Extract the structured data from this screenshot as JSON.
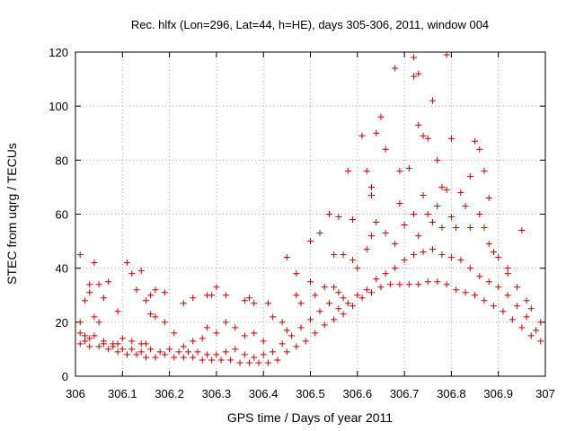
{
  "chart_data": {
    "type": "scatter",
    "title": "Rec. hlfx (Lon=296, Lat=44, h=HE), days 305-306, 2011, window 004",
    "xlabel": "GPS time / Days of year 2011",
    "ylabel": "STEC from uqrg / TECUs",
    "xlim": [
      306,
      307
    ],
    "ylim": [
      0,
      120
    ],
    "x_ticks": [
      306,
      306.1,
      306.2,
      306.3,
      306.4,
      306.5,
      306.6,
      306.7,
      306.8,
      306.9,
      307
    ],
    "x_tick_labels": [
      "306",
      "306.1",
      "306.2",
      "306.3",
      "306.4",
      "306.5",
      "306.6",
      "306.7",
      "306.8",
      "306.9",
      "307"
    ],
    "y_ticks": [
      0,
      20,
      40,
      60,
      80,
      100,
      120
    ],
    "y_tick_labels": [
      "0",
      "20",
      "40",
      "60",
      "80",
      "100",
      "120"
    ],
    "grid": true,
    "marker": "plus",
    "color": "#cc0000",
    "series": [
      {
        "points": [
          [
            306.01,
            45
          ],
          [
            306.02,
            28
          ],
          [
            306.03,
            34
          ],
          [
            306.03,
            31
          ],
          [
            306.04,
            42
          ],
          [
            306.05,
            34
          ],
          [
            306.06,
            29
          ],
          [
            306.07,
            35
          ],
          [
            306.09,
            24
          ],
          [
            306.11,
            42
          ],
          [
            306.12,
            38
          ],
          [
            306.13,
            32
          ],
          [
            306.14,
            39
          ],
          [
            306.15,
            28
          ],
          [
            306.16,
            30
          ],
          [
            306.17,
            32
          ],
          [
            306.19,
            31
          ],
          [
            306.23,
            27
          ],
          [
            306.25,
            29
          ],
          [
            306.28,
            30
          ],
          [
            306.29,
            30
          ],
          [
            306.3,
            33
          ],
          [
            306.32,
            30
          ],
          [
            306.36,
            28
          ],
          [
            306.37,
            29
          ],
          [
            306.38,
            27
          ],
          [
            306.41,
            27
          ],
          [
            306.45,
            44
          ],
          [
            306.47,
            38
          ],
          [
            306.5,
            50
          ],
          [
            306.52,
            53
          ],
          [
            306.54,
            60
          ],
          [
            306.55,
            45
          ],
          [
            306.56,
            59
          ],
          [
            306.57,
            45
          ],
          [
            306.58,
            76
          ],
          [
            306.59,
            58
          ],
          [
            306.61,
            89
          ],
          [
            306.62,
            76
          ],
          [
            306.63,
            67
          ],
          [
            306.63,
            70
          ],
          [
            306.64,
            90
          ],
          [
            306.65,
            96
          ],
          [
            306.66,
            84
          ],
          [
            306.68,
            114
          ],
          [
            306.69,
            76
          ],
          [
            306.71,
            77
          ],
          [
            306.72,
            118
          ],
          [
            306.72,
            111
          ],
          [
            306.73,
            112
          ],
          [
            306.73,
            93
          ],
          [
            306.74,
            89
          ],
          [
            306.75,
            88
          ],
          [
            306.76,
            102
          ],
          [
            306.77,
            80
          ],
          [
            306.78,
            70
          ],
          [
            306.79,
            119
          ],
          [
            306.8,
            88
          ],
          [
            306.82,
            68
          ],
          [
            306.84,
            74
          ],
          [
            306.85,
            87
          ],
          [
            306.86,
            84
          ],
          [
            306.87,
            76
          ],
          [
            306.88,
            66
          ],
          [
            306.92,
            40
          ],
          [
            306.95,
            54
          ],
          [
            306.01,
            20
          ],
          [
            306.02,
            15
          ],
          [
            306.03,
            14
          ],
          [
            306.04,
            22
          ],
          [
            306.05,
            20
          ],
          [
            306.06,
            13
          ],
          [
            306.08,
            12
          ],
          [
            306.09,
            12
          ],
          [
            306.1,
            14
          ],
          [
            306.12,
            13
          ],
          [
            306.14,
            12
          ],
          [
            306.15,
            12
          ],
          [
            306.16,
            23
          ],
          [
            306.17,
            22
          ],
          [
            306.19,
            20
          ],
          [
            306.21,
            16
          ],
          [
            306.23,
            11
          ],
          [
            306.25,
            13
          ],
          [
            306.27,
            14
          ],
          [
            306.28,
            18
          ],
          [
            306.3,
            16
          ],
          [
            306.32,
            20
          ],
          [
            306.34,
            18
          ],
          [
            306.36,
            15
          ],
          [
            306.38,
            16
          ],
          [
            306.4,
            13
          ],
          [
            306.42,
            22
          ],
          [
            306.44,
            20
          ],
          [
            306.45,
            17
          ],
          [
            306.47,
            30
          ],
          [
            306.48,
            27
          ],
          [
            306.5,
            35
          ],
          [
            306.51,
            30
          ],
          [
            306.53,
            33
          ],
          [
            306.55,
            33
          ],
          [
            306.56,
            31
          ],
          [
            306.57,
            29
          ],
          [
            306.59,
            43
          ],
          [
            306.6,
            40
          ],
          [
            306.62,
            47
          ],
          [
            306.63,
            52
          ],
          [
            306.64,
            57
          ],
          [
            306.66,
            53
          ],
          [
            306.68,
            49
          ],
          [
            306.69,
            64
          ],
          [
            306.7,
            56
          ],
          [
            306.72,
            60
          ],
          [
            306.73,
            52
          ],
          [
            306.74,
            67
          ],
          [
            306.75,
            60
          ],
          [
            306.76,
            57
          ],
          [
            306.77,
            63
          ],
          [
            306.78,
            55
          ],
          [
            306.79,
            69
          ],
          [
            306.8,
            59
          ],
          [
            306.81,
            55
          ],
          [
            306.83,
            63
          ],
          [
            306.84,
            55
          ],
          [
            306.86,
            60
          ],
          [
            306.87,
            55
          ],
          [
            306.88,
            49
          ],
          [
            306.89,
            46
          ],
          [
            306.9,
            44
          ],
          [
            306.92,
            38
          ],
          [
            306.94,
            33
          ],
          [
            306.96,
            28
          ],
          [
            306.97,
            25
          ],
          [
            306.99,
            20
          ],
          [
            306.01,
            16
          ],
          [
            306.02,
            13
          ],
          [
            306.04,
            15
          ],
          [
            306.06,
            12
          ],
          [
            306.08,
            11
          ],
          [
            306.1,
            10
          ],
          [
            306.12,
            10
          ],
          [
            306.14,
            9
          ],
          [
            306.16,
            10
          ],
          [
            306.18,
            9
          ],
          [
            306.2,
            10
          ],
          [
            306.22,
            9
          ],
          [
            306.24,
            9
          ],
          [
            306.26,
            9
          ],
          [
            306.28,
            8
          ],
          [
            306.3,
            8
          ],
          [
            306.32,
            9
          ],
          [
            306.34,
            10
          ],
          [
            306.36,
            8
          ],
          [
            306.38,
            7
          ],
          [
            306.4,
            8
          ],
          [
            306.42,
            9
          ],
          [
            306.44,
            12
          ],
          [
            306.46,
            15
          ],
          [
            306.48,
            18
          ],
          [
            306.5,
            21
          ],
          [
            306.52,
            24
          ],
          [
            306.54,
            27
          ],
          [
            306.56,
            25
          ],
          [
            306.58,
            27
          ],
          [
            306.6,
            30
          ],
          [
            306.62,
            32
          ],
          [
            306.64,
            36
          ],
          [
            306.66,
            38
          ],
          [
            306.68,
            40
          ],
          [
            306.7,
            43
          ],
          [
            306.72,
            45
          ],
          [
            306.74,
            46
          ],
          [
            306.76,
            47
          ],
          [
            306.78,
            45
          ],
          [
            306.8,
            44
          ],
          [
            306.82,
            43
          ],
          [
            306.84,
            40
          ],
          [
            306.86,
            37
          ],
          [
            306.88,
            35
          ],
          [
            306.9,
            33
          ],
          [
            306.92,
            30
          ],
          [
            306.94,
            26
          ],
          [
            306.96,
            22
          ],
          [
            306.98,
            17
          ],
          [
            306.01,
            12
          ],
          [
            306.03,
            11
          ],
          [
            306.05,
            11
          ],
          [
            306.07,
            10
          ],
          [
            306.09,
            9
          ],
          [
            306.11,
            8
          ],
          [
            306.13,
            8
          ],
          [
            306.15,
            7
          ],
          [
            306.17,
            7
          ],
          [
            306.19,
            8
          ],
          [
            306.21,
            7
          ],
          [
            306.23,
            7
          ],
          [
            306.25,
            7
          ],
          [
            306.27,
            6
          ],
          [
            306.29,
            6
          ],
          [
            306.31,
            6
          ],
          [
            306.33,
            6
          ],
          [
            306.35,
            5
          ],
          [
            306.37,
            5
          ],
          [
            306.39,
            5
          ],
          [
            306.41,
            5
          ],
          [
            306.43,
            6
          ],
          [
            306.45,
            9
          ],
          [
            306.47,
            11
          ],
          [
            306.49,
            13
          ],
          [
            306.51,
            16
          ],
          [
            306.53,
            19
          ],
          [
            306.55,
            21
          ],
          [
            306.57,
            23
          ],
          [
            306.59,
            26
          ],
          [
            306.61,
            29
          ],
          [
            306.63,
            31
          ],
          [
            306.65,
            33
          ],
          [
            306.67,
            34
          ],
          [
            306.69,
            34
          ],
          [
            306.71,
            34
          ],
          [
            306.73,
            34
          ],
          [
            306.75,
            35
          ],
          [
            306.77,
            35
          ],
          [
            306.79,
            34
          ],
          [
            306.81,
            32
          ],
          [
            306.83,
            31
          ],
          [
            306.85,
            30
          ],
          [
            306.87,
            28
          ],
          [
            306.89,
            26
          ],
          [
            306.91,
            24
          ],
          [
            306.93,
            21
          ],
          [
            306.95,
            18
          ],
          [
            306.97,
            15
          ],
          [
            306.99,
            13
          ]
        ]
      }
    ]
  }
}
